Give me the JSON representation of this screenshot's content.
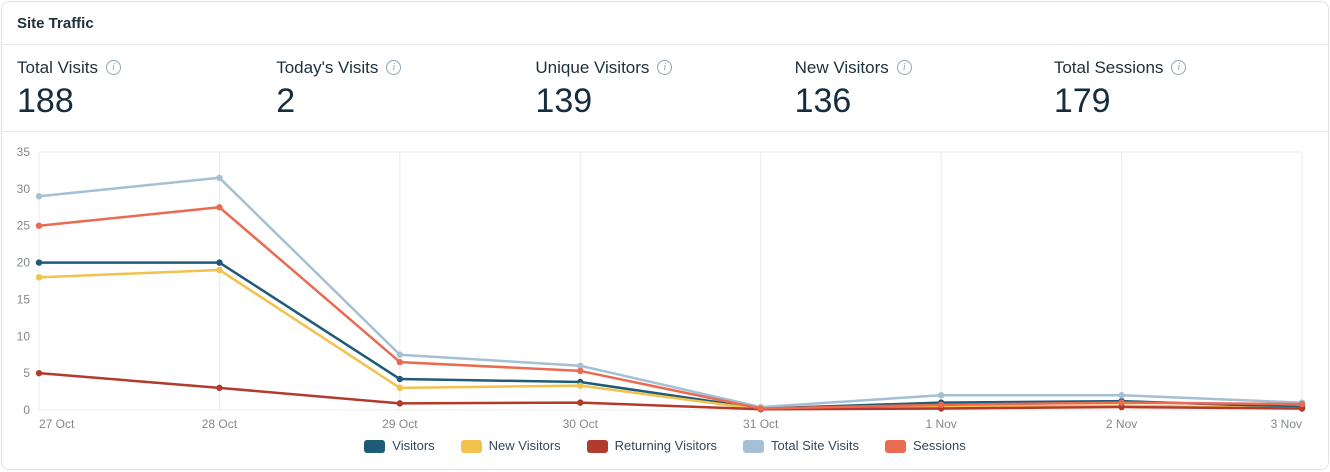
{
  "header": {
    "title": "Site Traffic"
  },
  "stats": [
    {
      "label": "Total Visits",
      "value": "188"
    },
    {
      "label": "Today's Visits",
      "value": "2"
    },
    {
      "label": "Unique Visitors",
      "value": "139"
    },
    {
      "label": "New Visitors",
      "value": "136"
    },
    {
      "label": "Total Sessions",
      "value": "179"
    }
  ],
  "chart_data": {
    "type": "line",
    "x": [
      "27 Oct",
      "28 Oct",
      "29 Oct",
      "30 Oct",
      "31 Oct",
      "1 Nov",
      "2 Nov",
      "3 Nov"
    ],
    "series": [
      {
        "name": "Visitors",
        "color": "#1e5b77",
        "values": [
          20,
          20,
          4.2,
          3.8,
          0.2,
          1,
          1.2,
          0.4
        ]
      },
      {
        "name": "New Visitors",
        "color": "#f2c14e",
        "values": [
          18,
          19,
          3,
          3.3,
          0.1,
          0.4,
          0.6,
          0.2
        ]
      },
      {
        "name": "Returning Visitors",
        "color": "#b23b2d",
        "values": [
          5,
          3,
          0.9,
          1,
          0.1,
          0.2,
          0.4,
          0.2
        ]
      },
      {
        "name": "Total Site Visits",
        "color": "#a4c0d4",
        "values": [
          29,
          31.5,
          7.5,
          6,
          0.4,
          2,
          2,
          1
        ]
      },
      {
        "name": "Sessions",
        "color": "#ea6a52",
        "values": [
          25,
          27.5,
          6.5,
          5.3,
          0.2,
          0.7,
          1,
          0.8
        ]
      }
    ],
    "title": "",
    "xlabel": "",
    "ylabel": "",
    "ylim": [
      0,
      35
    ],
    "yticks": [
      0,
      5,
      10,
      15,
      20,
      25,
      30,
      35
    ],
    "grid": "vertical",
    "legend_position": "bottom",
    "grid_color": "#e9ebed",
    "tick_color": "#83888d"
  }
}
